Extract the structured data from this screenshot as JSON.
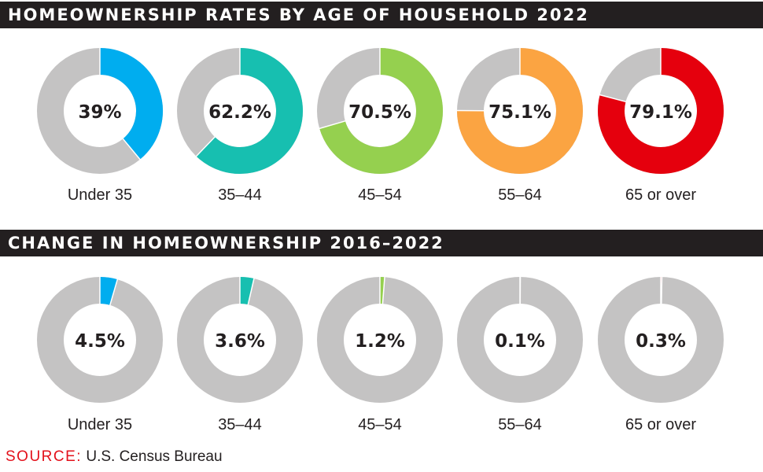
{
  "colors": {
    "background_track": "#c4c3c3",
    "header_bg": "#231f20",
    "source_label": "#e3111b",
    "series": [
      "#00adef",
      "#17bfb0",
      "#95d04f",
      "#fba442",
      "#e5000d"
    ]
  },
  "footer": {
    "source_label": "SOURCE:",
    "source_text": "U.S. Census Bureau"
  },
  "chart_data": [
    {
      "type": "pie",
      "title": "HOMEOWNERSHIP RATES BY AGE OF HOUSEHOLD 2022",
      "categories": [
        "Under 35",
        "35–44",
        "45–54",
        "55–64",
        "65 or over"
      ],
      "values": [
        39,
        62.2,
        70.5,
        75.1,
        79.1
      ],
      "value_labels": [
        "39%",
        "62.2%",
        "70.5%",
        "75.1%",
        "79.1%"
      ],
      "unit": "%"
    },
    {
      "type": "pie",
      "title": "CHANGE IN HOMEOWNERSHIP 2016–2022",
      "categories": [
        "Under 35",
        "35–44",
        "45–54",
        "55–64",
        "65 or over"
      ],
      "values": [
        4.5,
        3.6,
        1.2,
        0.1,
        0.3
      ],
      "value_labels": [
        "4.5%",
        "3.6%",
        "1.2%",
        "0.1%",
        "0.3%"
      ],
      "unit": "%"
    }
  ]
}
